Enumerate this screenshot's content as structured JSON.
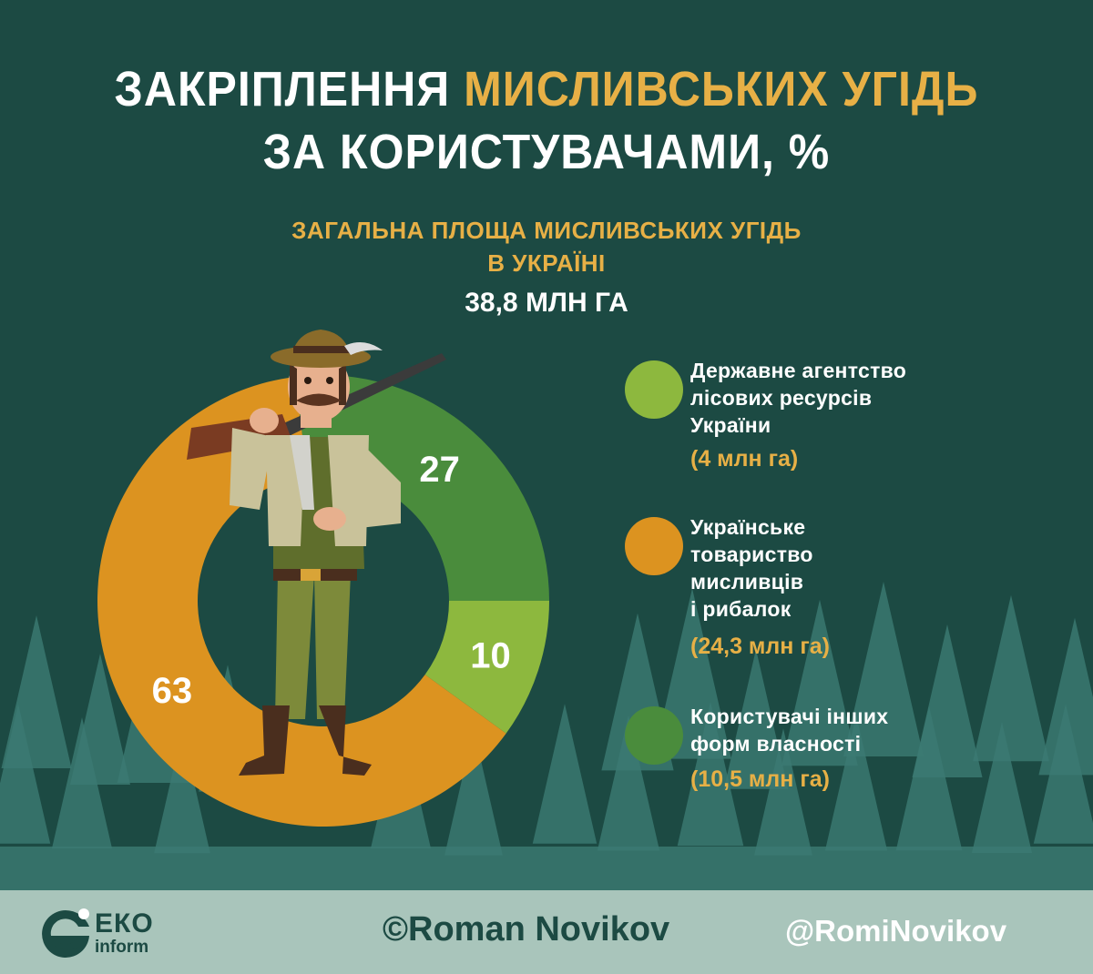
{
  "title": {
    "part1": "ЗАКРІПЛЕННЯ ",
    "highlight": "МИСЛИВСЬКИХ УГІДЬ",
    "line2": "ЗА КОРИСТУВАЧАМИ, %"
  },
  "subtitle": {
    "line1": "ЗАГАЛЬНА ПЛОЩА МИСЛИВСЬКИХ УГІДЬ",
    "line2": "В УКРАЇНІ",
    "total": "38,8 МЛН ГА"
  },
  "chart_data": {
    "type": "pie",
    "donut": true,
    "unit": "%",
    "slices": [
      {
        "label": "Державне агентство лісових ресурсів України",
        "value": 10,
        "area": "(4 млн га)",
        "color": "#8db83e"
      },
      {
        "label": "Українське товариство мисливців і рибалок",
        "value": 63,
        "area": "(24,3 млн га)",
        "color": "#dc9320"
      },
      {
        "label": "Користувачі інших форм власності",
        "value": 27,
        "area": "(10,5 млн га)",
        "color": "#4a8c3c"
      }
    ]
  },
  "legend": [
    {
      "label": "Державне агентство\nлісових ресурсів\nУкраїни",
      "value": "(4 млн га)",
      "color": "#8db83e"
    },
    {
      "label": "Українське\nтовариство\nмисливців\nі рибалок",
      "value": "(24,3 млн га)",
      "color": "#dc9320"
    },
    {
      "label": "Користувачі інших\nформ власності",
      "value": "(10,5 млн га)",
      "color": "#4a8c3c"
    }
  ],
  "footer": {
    "logo_line1": "ЕКО",
    "logo_line2": "inform",
    "copyright": "©Roman Novikov",
    "twitter": "@RomiNovikov"
  },
  "colors": {
    "background": "#1c4a43",
    "accent": "#e7b046",
    "footer": "#a9c5bb",
    "trees": "#3c7a73"
  },
  "icons": [
    "hunter-illustration",
    "tree-icon",
    "eko-logo-icon"
  ]
}
